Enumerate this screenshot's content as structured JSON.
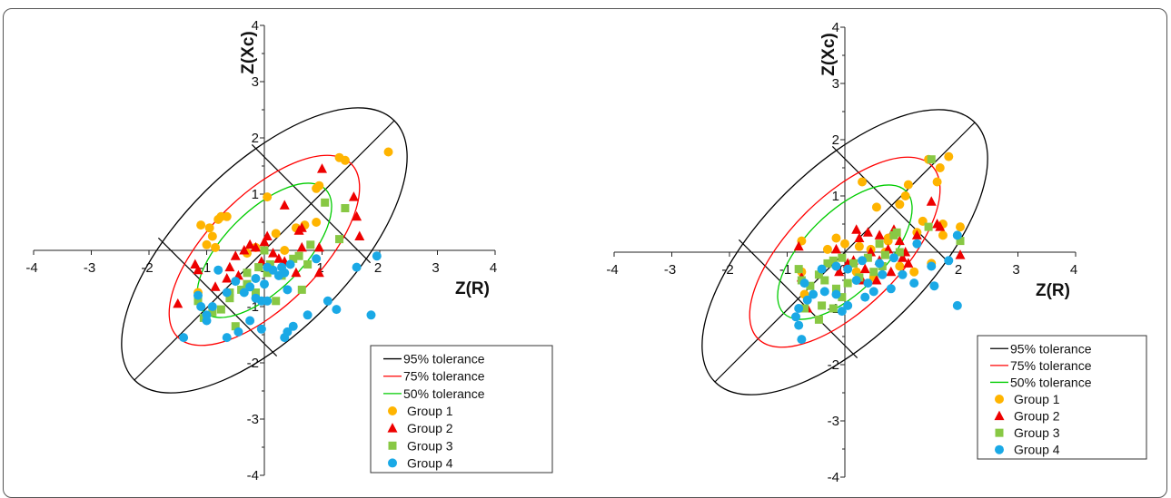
{
  "chart_data": [
    {
      "type": "scatter",
      "title": "",
      "xlabel": "Z(R)",
      "ylabel": "Z(Xc)",
      "xlim": [
        -4,
        4
      ],
      "ylim": [
        -4,
        4
      ],
      "xticks": [
        -4,
        -3,
        -2,
        -1,
        0,
        1,
        2,
        3,
        4
      ],
      "yticks": [
        -4,
        -3,
        -2,
        -1,
        0,
        1,
        2,
        3,
        4
      ],
      "grid": false,
      "legend_position": "bottom-right",
      "ellipses": [
        {
          "name": "95% tolerance",
          "color": "#000000",
          "semi_major": 3.25,
          "semi_minor": 1.48,
          "angle_deg": 45
        },
        {
          "name": "75% tolerance",
          "color": "#ff0000",
          "semi_major": 2.17,
          "semi_minor": 0.98,
          "angle_deg": 45
        },
        {
          "name": "50% tolerance",
          "color": "#00cc00",
          "semi_major": 1.53,
          "semi_minor": 0.7,
          "angle_deg": 45
        }
      ],
      "series": [
        {
          "name": "Group 1",
          "marker": "circle",
          "color": "#ffb400",
          "points": [
            [
              2.15,
              1.75
            ],
            [
              1.3,
              1.65
            ],
            [
              1.4,
              1.6
            ],
            [
              0.9,
              1.1
            ],
            [
              0.95,
              1.15
            ],
            [
              0.05,
              0.95
            ],
            [
              -1.1,
              0.45
            ],
            [
              -0.8,
              0.55
            ],
            [
              -0.75,
              0.6
            ],
            [
              -0.65,
              0.6
            ],
            [
              -0.95,
              0.4
            ],
            [
              -0.9,
              0.25
            ],
            [
              -1.0,
              0.1
            ],
            [
              -0.85,
              0.05
            ],
            [
              0.9,
              0.5
            ],
            [
              0.55,
              0.4
            ],
            [
              0.7,
              0.45
            ],
            [
              -0.3,
              -0.05
            ],
            [
              -0.15,
              0.05
            ],
            [
              0.2,
              0.3
            ],
            [
              0.35,
              0.0
            ],
            [
              -1.15,
              -0.75
            ]
          ]
        },
        {
          "name": "Group 2",
          "marker": "triangle",
          "color": "#ee0000",
          "points": [
            [
              1.0,
              1.45
            ],
            [
              1.55,
              0.95
            ],
            [
              1.6,
              0.6
            ],
            [
              1.65,
              0.25
            ],
            [
              0.35,
              0.8
            ],
            [
              0.6,
              0.35
            ],
            [
              0.65,
              0.4
            ],
            [
              -1.5,
              -0.95
            ],
            [
              -1.2,
              -0.25
            ],
            [
              -1.15,
              -0.35
            ],
            [
              -0.85,
              -0.65
            ],
            [
              -0.65,
              -0.5
            ],
            [
              -0.5,
              -0.1
            ],
            [
              -0.45,
              -0.45
            ],
            [
              -0.35,
              0.0
            ],
            [
              -0.25,
              0.1
            ],
            [
              -0.15,
              0.05
            ],
            [
              0.0,
              0.15
            ],
            [
              0.05,
              0.25
            ],
            [
              0.15,
              -0.05
            ],
            [
              0.25,
              -0.15
            ],
            [
              0.35,
              -0.2
            ],
            [
              0.55,
              -0.4
            ],
            [
              0.65,
              0.05
            ],
            [
              0.95,
              0.05
            ],
            [
              0.95,
              -0.4
            ],
            [
              -0.05,
              -0.2
            ],
            [
              -0.6,
              -0.3
            ]
          ]
        },
        {
          "name": "Group 3",
          "marker": "square",
          "color": "#88c844",
          "points": [
            [
              1.4,
              0.75
            ],
            [
              1.05,
              0.85
            ],
            [
              1.3,
              0.2
            ],
            [
              0.8,
              0.1
            ],
            [
              0.6,
              -0.1
            ],
            [
              0.75,
              -0.25
            ],
            [
              0.5,
              -0.15
            ],
            [
              0.1,
              -0.25
            ],
            [
              0.3,
              -0.45
            ],
            [
              0.65,
              -0.7
            ],
            [
              0.2,
              -0.9
            ],
            [
              -0.15,
              -0.75
            ],
            [
              -0.4,
              -0.7
            ],
            [
              -0.6,
              -0.85
            ],
            [
              -0.75,
              -1.05
            ],
            [
              -0.9,
              -1.1
            ],
            [
              -1.15,
              -0.9
            ],
            [
              -0.5,
              -1.35
            ],
            [
              -0.1,
              -0.3
            ],
            [
              0.05,
              -0.4
            ],
            [
              -0.3,
              -0.4
            ],
            [
              0.0,
              0.0
            ],
            [
              -0.6,
              -0.75
            ],
            [
              -1.05,
              -1.2
            ],
            [
              -0.3,
              -0.6
            ]
          ]
        },
        {
          "name": "Group 4",
          "marker": "circle",
          "color": "#1aa9e6",
          "points": [
            [
              1.6,
              -0.3
            ],
            [
              1.95,
              -0.1
            ],
            [
              1.85,
              -1.15
            ],
            [
              1.25,
              -1.05
            ],
            [
              1.1,
              -0.9
            ],
            [
              0.75,
              -1.15
            ],
            [
              0.5,
              -1.35
            ],
            [
              0.4,
              -1.45
            ],
            [
              0.35,
              -1.55
            ],
            [
              -1.4,
              -1.55
            ],
            [
              -0.65,
              -1.55
            ],
            [
              -0.45,
              -1.45
            ],
            [
              -0.05,
              -1.4
            ],
            [
              -0.25,
              -1.25
            ],
            [
              -1.1,
              -1.0
            ],
            [
              -0.9,
              -1.0
            ],
            [
              -1.0,
              -1.15
            ],
            [
              -1.0,
              -1.25
            ],
            [
              -1.15,
              -0.8
            ],
            [
              -0.65,
              -0.75
            ],
            [
              -0.35,
              -0.75
            ],
            [
              -0.15,
              -0.85
            ],
            [
              -0.05,
              -0.9
            ],
            [
              0.05,
              -0.9
            ],
            [
              -0.15,
              -0.5
            ],
            [
              0.0,
              -0.6
            ],
            [
              0.25,
              -0.45
            ],
            [
              0.35,
              -0.4
            ],
            [
              0.15,
              -0.35
            ],
            [
              0.45,
              -0.25
            ],
            [
              0.3,
              -0.3
            ],
            [
              0.05,
              -0.3
            ],
            [
              -0.25,
              -0.65
            ],
            [
              -0.5,
              -0.55
            ],
            [
              0.9,
              -0.15
            ],
            [
              0.4,
              -0.7
            ],
            [
              -0.8,
              -0.35
            ]
          ]
        }
      ]
    },
    {
      "type": "scatter",
      "title": "",
      "xlabel": "Z(R)",
      "ylabel": "Z(Xc)",
      "xlim": [
        -4,
        4
      ],
      "ylim": [
        -4,
        4
      ],
      "xticks": [
        -4,
        -3,
        -2,
        -1,
        0,
        1,
        2,
        3,
        4
      ],
      "yticks": [
        -4,
        -3,
        -2,
        -1,
        0,
        1,
        2,
        3,
        4
      ],
      "grid": false,
      "legend_position": "bottom-right",
      "ellipses": [
        {
          "name": "95% tolerance",
          "color": "#000000",
          "semi_major": 3.25,
          "semi_minor": 1.48,
          "angle_deg": 45
        },
        {
          "name": "75% tolerance",
          "color": "#ff0000",
          "semi_major": 2.17,
          "semi_minor": 0.98,
          "angle_deg": 45
        },
        {
          "name": "50% tolerance",
          "color": "#00cc00",
          "semi_major": 1.53,
          "semi_minor": 0.7,
          "angle_deg": 45
        }
      ],
      "series": [
        {
          "name": "Group 1",
          "marker": "circle",
          "color": "#ffb400",
          "points": [
            [
              1.8,
              1.7
            ],
            [
              1.65,
              1.5
            ],
            [
              1.6,
              1.25
            ],
            [
              1.45,
              1.65
            ],
            [
              1.1,
              1.2
            ],
            [
              1.05,
              1.0
            ],
            [
              0.95,
              0.85
            ],
            [
              0.3,
              1.25
            ],
            [
              0.55,
              0.8
            ],
            [
              1.35,
              0.55
            ],
            [
              1.7,
              0.5
            ],
            [
              2.0,
              0.45
            ],
            [
              1.7,
              0.3
            ],
            [
              1.25,
              0.35
            ],
            [
              0.75,
              0.2
            ],
            [
              0.7,
              0.0
            ],
            [
              0.45,
              0.05
            ],
            [
              0.25,
              0.1
            ],
            [
              0.0,
              0.15
            ],
            [
              -0.15,
              0.25
            ],
            [
              -0.3,
              0.05
            ],
            [
              -0.75,
              0.2
            ],
            [
              -0.75,
              -0.35
            ],
            [
              -0.7,
              -0.75
            ],
            [
              0.5,
              -0.45
            ],
            [
              0.95,
              -0.25
            ],
            [
              1.2,
              -0.35
            ],
            [
              1.5,
              -0.2
            ],
            [
              0.2,
              -0.35
            ],
            [
              0.75,
              0.25
            ]
          ]
        },
        {
          "name": "Group 2",
          "marker": "triangle",
          "color": "#ee0000",
          "points": [
            [
              1.5,
              0.9
            ],
            [
              1.6,
              0.5
            ],
            [
              1.65,
              0.45
            ],
            [
              2.0,
              -0.05
            ],
            [
              -0.8,
              0.1
            ],
            [
              -0.75,
              -0.45
            ],
            [
              -0.15,
              0.05
            ],
            [
              0.05,
              -0.2
            ],
            [
              0.25,
              0.25
            ],
            [
              0.2,
              0.4
            ],
            [
              0.4,
              0.35
            ],
            [
              0.45,
              0.0
            ],
            [
              0.6,
              0.3
            ],
            [
              0.75,
              0.05
            ],
            [
              0.85,
              0.4
            ],
            [
              0.95,
              0.2
            ],
            [
              1.05,
              0.0
            ],
            [
              1.1,
              -0.2
            ],
            [
              1.25,
              0.3
            ],
            [
              0.35,
              -0.3
            ],
            [
              0.55,
              -0.5
            ],
            [
              0.8,
              -0.35
            ],
            [
              1.0,
              -0.1
            ],
            [
              -0.1,
              -0.35
            ],
            [
              0.15,
              -0.15
            ],
            [
              -0.65,
              -1.0
            ],
            [
              0.6,
              -0.15
            ],
            [
              0.3,
              -0.5
            ]
          ]
        },
        {
          "name": "Group 3",
          "marker": "square",
          "color": "#88c844",
          "points": [
            [
              1.5,
              1.65
            ],
            [
              2.0,
              0.2
            ],
            [
              1.45,
              0.45
            ],
            [
              0.9,
              0.35
            ],
            [
              0.85,
              0.3
            ],
            [
              0.6,
              0.15
            ],
            [
              0.7,
              -0.05
            ],
            [
              0.65,
              -0.25
            ],
            [
              0.4,
              -0.1
            ],
            [
              0.15,
              -0.2
            ],
            [
              -0.05,
              -0.1
            ],
            [
              -0.3,
              -0.2
            ],
            [
              -0.35,
              -0.5
            ],
            [
              -0.45,
              -0.4
            ],
            [
              -0.6,
              -0.6
            ],
            [
              -0.75,
              -0.5
            ],
            [
              -0.8,
              -0.3
            ],
            [
              -0.15,
              -0.65
            ],
            [
              0.05,
              -0.55
            ],
            [
              -0.05,
              -0.8
            ],
            [
              -0.2,
              -1.0
            ],
            [
              -0.4,
              -0.95
            ],
            [
              -0.7,
              -1.0
            ],
            [
              -0.45,
              -1.2
            ],
            [
              0.25,
              -0.45
            ],
            [
              0.5,
              -0.35
            ],
            [
              0.95,
              0.0
            ],
            [
              -0.2,
              -0.15
            ]
          ]
        },
        {
          "name": "Group 4",
          "marker": "circle",
          "color": "#1aa9e6",
          "points": [
            [
              1.25,
              0.15
            ],
            [
              1.5,
              -0.25
            ],
            [
              1.8,
              -0.15
            ],
            [
              1.95,
              0.3
            ],
            [
              1.55,
              -0.6
            ],
            [
              1.95,
              -0.95
            ],
            [
              0.6,
              -0.2
            ],
            [
              0.85,
              -0.1
            ],
            [
              1.0,
              -0.4
            ],
            [
              0.8,
              -0.65
            ],
            [
              0.5,
              -0.7
            ],
            [
              0.35,
              -0.8
            ],
            [
              0.05,
              -0.95
            ],
            [
              -0.05,
              -1.05
            ],
            [
              -0.15,
              -0.75
            ],
            [
              -0.35,
              -0.7
            ],
            [
              -0.55,
              -0.75
            ],
            [
              -0.7,
              -0.55
            ],
            [
              -0.65,
              -0.85
            ],
            [
              -0.8,
              -1.0
            ],
            [
              -0.85,
              -1.15
            ],
            [
              -0.8,
              -1.3
            ],
            [
              -0.75,
              -1.55
            ],
            [
              -0.15,
              -0.25
            ],
            [
              0.05,
              -0.3
            ],
            [
              0.2,
              -0.5
            ],
            [
              0.4,
              -0.55
            ],
            [
              0.65,
              -0.4
            ],
            [
              1.2,
              -0.55
            ],
            [
              -0.4,
              -0.3
            ],
            [
              0.3,
              -0.15
            ]
          ]
        }
      ]
    }
  ]
}
